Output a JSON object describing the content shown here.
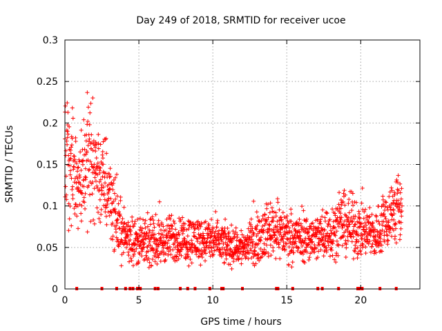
{
  "chart_data": {
    "type": "scatter",
    "title": "Day 249 of 2018, SRMTID for receiver ucoe",
    "xlabel": "GPS time / hours",
    "ylabel": "SRMTID / TECUs",
    "xlim": [
      0,
      24
    ],
    "ylim": [
      0,
      0.3
    ],
    "xticks": [
      "0",
      "5",
      "10",
      "15",
      "20"
    ],
    "xtick_values": [
      0,
      5,
      10,
      15,
      20
    ],
    "yticks": [
      "0",
      "0.05",
      "0.1",
      "0.15",
      "0.2",
      "0.25",
      "0.3"
    ],
    "ytick_values": [
      0,
      0.05,
      0.1,
      0.15,
      0.2,
      0.25,
      0.3
    ],
    "grid": true,
    "marker": "plus",
    "color": "#ff0000",
    "trend": {
      "description": "approximate envelope of point cloud (hour, SRMTID)",
      "x": [
        0,
        0.5,
        1,
        1.5,
        2,
        2.5,
        3,
        3.5,
        4,
        5,
        6,
        7,
        8,
        9,
        10,
        11,
        12,
        13,
        14,
        15,
        16,
        17,
        18,
        19,
        20,
        21,
        22,
        22.8
      ],
      "y": [
        0.16,
        0.14,
        0.13,
        0.16,
        0.15,
        0.13,
        0.12,
        0.08,
        0.065,
        0.055,
        0.055,
        0.06,
        0.06,
        0.06,
        0.058,
        0.052,
        0.05,
        0.06,
        0.075,
        0.065,
        0.06,
        0.062,
        0.07,
        0.08,
        0.07,
        0.065,
        0.09,
        0.1
      ]
    },
    "zero_markers_x": [
      0.8,
      2.5,
      3.5,
      4.1,
      4.4,
      4.6,
      4.9,
      5.1,
      6.1,
      6.3,
      7.8,
      8.3,
      8.8,
      9.8,
      10.6,
      10.7,
      12.0,
      14.3,
      14.4,
      15.4,
      17.1,
      17.4,
      18.5,
      19.8,
      19.9,
      20.1,
      21.3,
      22.4
    ]
  }
}
